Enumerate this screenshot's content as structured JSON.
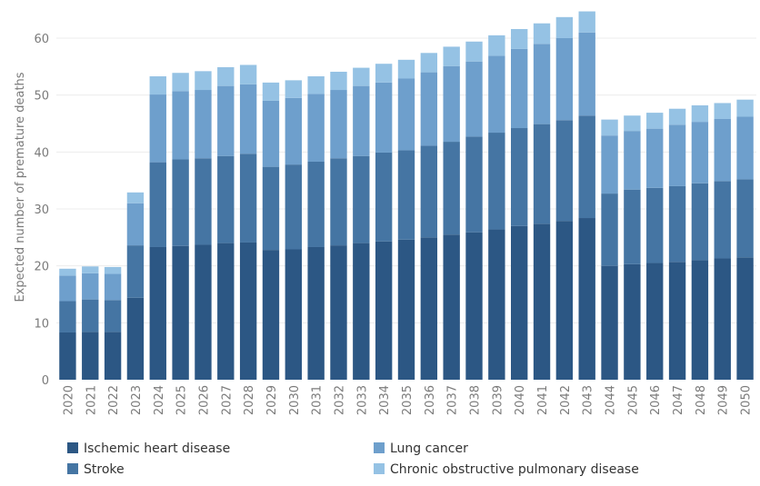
{
  "chart_data": {
    "type": "bar",
    "stacked": true,
    "title": "",
    "xlabel": "",
    "ylabel": "Expected number of premature deaths",
    "ylim": [
      0,
      65
    ],
    "yticks": [
      0,
      10,
      20,
      30,
      40,
      50,
      60
    ],
    "grid": "horizontal",
    "legend_position": "bottom",
    "categories": [
      "2020",
      "2021",
      "2022",
      "2023",
      "2024",
      "2025",
      "2026",
      "2027",
      "2028",
      "2029",
      "2030",
      "2031",
      "2032",
      "2033",
      "2034",
      "2035",
      "2036",
      "2037",
      "2038",
      "2039",
      "2040",
      "2041",
      "2042",
      "2043",
      "2044",
      "2045",
      "2046",
      "2047",
      "2048",
      "2049",
      "2050"
    ],
    "series": [
      {
        "name": "Ischemic heart disease",
        "color": "#2c5784",
        "values": [
          8.3,
          8.4,
          8.4,
          14.4,
          23.3,
          23.5,
          23.7,
          24.0,
          24.1,
          22.8,
          22.9,
          23.3,
          23.6,
          24.0,
          24.3,
          24.6,
          25.0,
          25.5,
          25.9,
          26.4,
          27.0,
          27.4,
          27.9,
          28.4,
          20.0,
          20.3,
          20.5,
          20.7,
          21.0,
          21.3,
          21.5
        ]
      },
      {
        "name": "Stroke",
        "color": "#4575a3",
        "values": [
          5.5,
          5.7,
          5.6,
          9.2,
          14.9,
          15.2,
          15.2,
          15.3,
          15.6,
          14.6,
          14.9,
          15.0,
          15.3,
          15.3,
          15.6,
          15.7,
          16.1,
          16.3,
          16.8,
          17.0,
          17.2,
          17.5,
          17.7,
          18.0,
          12.7,
          13.1,
          13.2,
          13.3,
          13.5,
          13.6,
          13.7
        ]
      },
      {
        "name": "Lung cancer",
        "color": "#6e9fcc",
        "values": [
          4.5,
          4.6,
          4.6,
          7.4,
          11.9,
          12.0,
          12.0,
          12.3,
          12.2,
          11.6,
          11.7,
          11.9,
          12.0,
          12.3,
          12.3,
          12.6,
          12.9,
          13.3,
          13.2,
          13.5,
          13.9,
          14.1,
          14.4,
          14.6,
          10.2,
          10.3,
          10.4,
          10.8,
          10.8,
          10.9,
          11.0
        ]
      },
      {
        "name": "Chronic obstructive pulmonary disease",
        "color": "#95c2e4",
        "values": [
          1.2,
          1.2,
          1.2,
          1.9,
          3.2,
          3.2,
          3.3,
          3.3,
          3.4,
          3.2,
          3.1,
          3.1,
          3.2,
          3.2,
          3.3,
          3.3,
          3.4,
          3.4,
          3.5,
          3.6,
          3.5,
          3.6,
          3.7,
          3.7,
          2.8,
          2.7,
          2.8,
          2.8,
          2.9,
          2.8,
          3.0
        ]
      }
    ]
  }
}
